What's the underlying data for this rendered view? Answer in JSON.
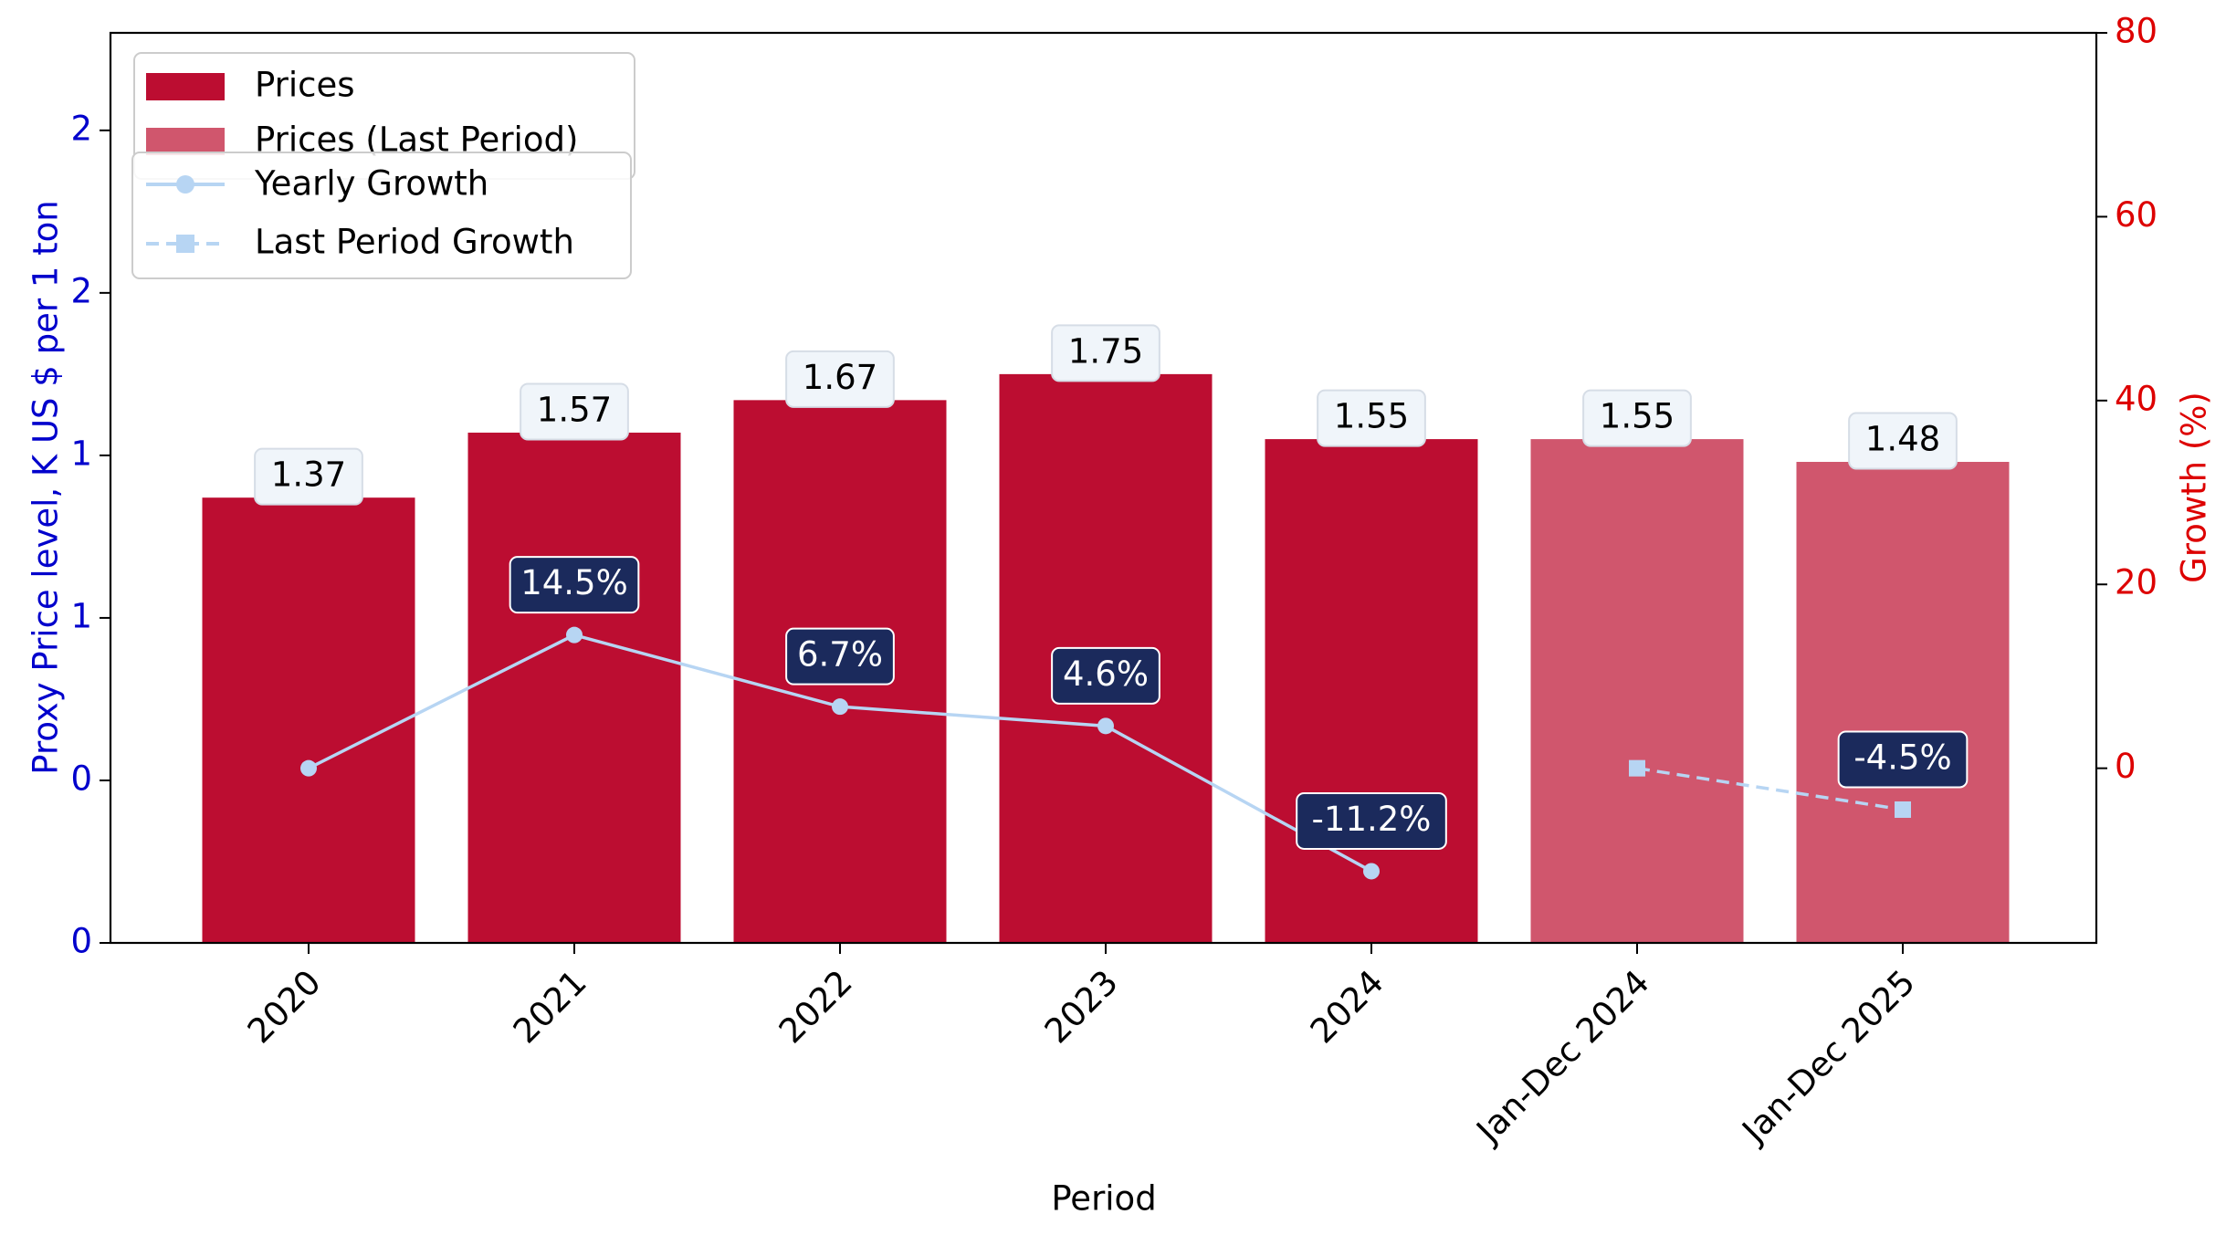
{
  "chart_data": {
    "type": "bar",
    "xlabel": "Period",
    "ylabel_left": "Proxy Price level, K US $ per 1 ton",
    "ylabel_right": "Growth (%)",
    "categories": [
      "2020",
      "2021",
      "2022",
      "2023",
      "2024",
      "Jan-Dec 2024",
      "Jan-Dec 2025"
    ],
    "ylim_left": [
      0.0,
      2.8
    ],
    "left_ticks": [
      0.0,
      0.5,
      1.0,
      1.5,
      2.0,
      2.5
    ],
    "left_tick_labels": [
      "0",
      "0",
      "1",
      "1",
      "2",
      "2"
    ],
    "ylim_right": [
      -19,
      80
    ],
    "right_ticks": [
      0,
      20,
      40,
      60,
      80
    ],
    "right_tick_labels": [
      "0",
      "20",
      "40",
      "60",
      "80"
    ],
    "bar_labels": [
      "1.37",
      "1.57",
      "1.67",
      "1.75",
      "1.55",
      "1.55",
      "1.48"
    ],
    "series": [
      {
        "name": "Prices",
        "kind": "bar",
        "color": "#bc0d31",
        "values": [
          1.37,
          1.57,
          1.67,
          1.75,
          1.55,
          null,
          null
        ]
      },
      {
        "name": "Prices (Last Period)",
        "kind": "bar",
        "color": "#d0566d",
        "values": [
          null,
          null,
          null,
          null,
          null,
          1.55,
          1.48
        ]
      },
      {
        "name": "Yearly Growth",
        "kind": "line",
        "axis": "right",
        "color": "#b7d5f3",
        "marker": "circle",
        "values": [
          0.0,
          14.5,
          6.7,
          4.6,
          -11.2,
          null,
          null
        ],
        "labels": [
          "",
          "14.5%",
          "6.7%",
          "4.6%",
          "-11.2%",
          "",
          ""
        ]
      },
      {
        "name": "Last Period Growth",
        "kind": "line",
        "axis": "right",
        "color": "#b7d5f3",
        "marker": "square",
        "dashed": true,
        "values": [
          null,
          null,
          null,
          null,
          null,
          0.0,
          -4.5
        ],
        "labels": [
          "",
          "",
          "",
          "",
          "",
          "",
          "-4.5%"
        ]
      }
    ],
    "legend": "top-left",
    "grid": false,
    "colors": {
      "left_axis": "#0000cc",
      "right_axis": "#dd0000",
      "growth_label_bg": "#1b2a5c",
      "price_label_bg": "#f0f5fa"
    }
  }
}
